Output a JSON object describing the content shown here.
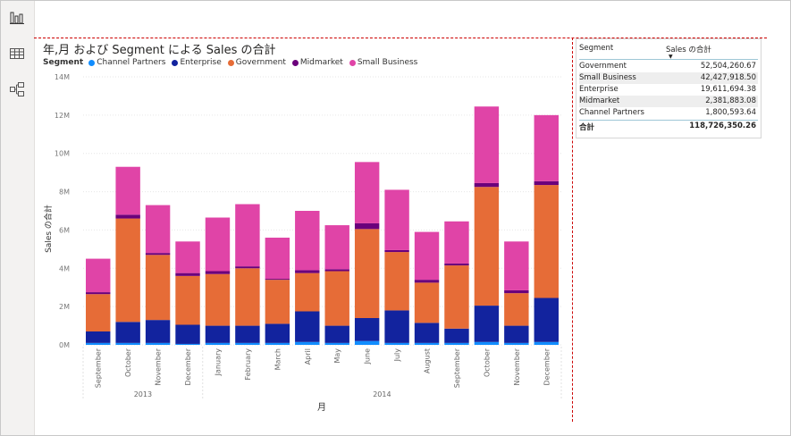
{
  "sidebar": {
    "icons": [
      "report-view-icon",
      "data-view-icon",
      "model-view-icon"
    ]
  },
  "visual": {
    "title": "年,月 および Segment による Sales の合計",
    "legend_title": "Segment",
    "legend": [
      {
        "name": "Channel Partners",
        "color": "#118dff"
      },
      {
        "name": "Enterprise",
        "color": "#12239e"
      },
      {
        "name": "Government",
        "color": "#e66c37"
      },
      {
        "name": "Midmarket",
        "color": "#6b007b"
      },
      {
        "name": "Small Business",
        "color": "#e044a7"
      }
    ]
  },
  "chart_data": {
    "type": "bar",
    "stacked": true,
    "ylabel": "Sales の合計",
    "xlabel": "月",
    "ylim": [
      0,
      14000000
    ],
    "yticks": [
      {
        "value": 0,
        "label": "0M"
      },
      {
        "value": 2000000,
        "label": "2M"
      },
      {
        "value": 4000000,
        "label": "4M"
      },
      {
        "value": 6000000,
        "label": "6M"
      },
      {
        "value": 8000000,
        "label": "8M"
      },
      {
        "value": 10000000,
        "label": "10M"
      },
      {
        "value": 12000000,
        "label": "12M"
      },
      {
        "value": 14000000,
        "label": "14M"
      }
    ],
    "categories": [
      "September",
      "October",
      "November",
      "December",
      "January",
      "February",
      "March",
      "April",
      "May",
      "June",
      "July",
      "August",
      "September",
      "October",
      "November",
      "December"
    ],
    "groups": [
      {
        "label": "2013",
        "count": 4
      },
      {
        "label": "2014",
        "count": 12
      }
    ],
    "series": [
      {
        "name": "Channel Partners",
        "color": "#118dff",
        "values": [
          100000,
          100000,
          100000,
          50000,
          100000,
          100000,
          100000,
          150000,
          100000,
          200000,
          100000,
          100000,
          100000,
          150000,
          100000,
          150000
        ]
      },
      {
        "name": "Enterprise",
        "color": "#12239e",
        "values": [
          600000,
          1100000,
          1200000,
          1000000,
          900000,
          900000,
          1000000,
          1600000,
          900000,
          1200000,
          1700000,
          1050000,
          750000,
          1900000,
          900000,
          2300000
        ]
      },
      {
        "name": "Government",
        "color": "#e66c37",
        "values": [
          1950000,
          5400000,
          3400000,
          2550000,
          2700000,
          3000000,
          2300000,
          2000000,
          2850000,
          4650000,
          3050000,
          2100000,
          3300000,
          6200000,
          1700000,
          5900000
        ]
      },
      {
        "name": "Midmarket",
        "color": "#6b007b",
        "values": [
          100000,
          200000,
          100000,
          150000,
          150000,
          100000,
          50000,
          150000,
          100000,
          300000,
          100000,
          150000,
          100000,
          200000,
          150000,
          200000
        ]
      },
      {
        "name": "Small Business",
        "color": "#e044a7",
        "values": [
          1750000,
          2500000,
          2500000,
          1650000,
          2800000,
          3250000,
          2150000,
          3100000,
          2300000,
          3200000,
          3150000,
          2500000,
          2200000,
          4000000,
          2550000,
          3450000
        ]
      }
    ]
  },
  "table": {
    "col1": "Segment",
    "col2": "Sales の合計",
    "rows": [
      {
        "segment": "Government",
        "value": "52,504,260.67"
      },
      {
        "segment": "Small Business",
        "value": "42,427,918.50"
      },
      {
        "segment": "Enterprise",
        "value": "19,611,694.38"
      },
      {
        "segment": "Midmarket",
        "value": "2,381,883.08"
      },
      {
        "segment": "Channel Partners",
        "value": "1,800,593.64"
      }
    ],
    "total_label": "合計",
    "total_value": "118,726,350.26"
  }
}
